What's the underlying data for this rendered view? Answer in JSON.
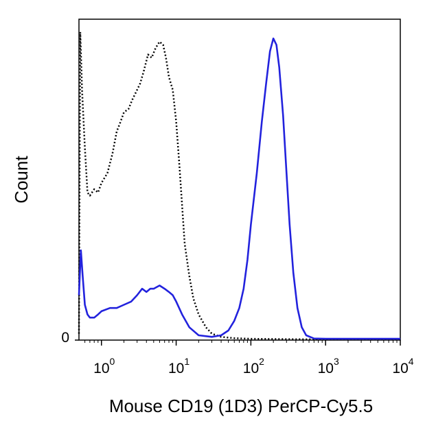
{
  "chart_data": {
    "type": "line",
    "title": "",
    "xlabel": "Mouse CD19 (1D3) PerCP-Cy5.5",
    "ylabel": "Count",
    "x_scale": "log",
    "xlim": [
      0.5,
      10000
    ],
    "ylim": [
      0,
      100
    ],
    "x_ticks": [
      {
        "value": 1,
        "base": "10",
        "exp": "0"
      },
      {
        "value": 10,
        "base": "10",
        "exp": "1"
      },
      {
        "value": 100,
        "base": "10",
        "exp": "2"
      },
      {
        "value": 1000,
        "base": "10",
        "exp": "3"
      },
      {
        "value": 10000,
        "base": "10",
        "exp": "4"
      }
    ],
    "y_ticks": [
      {
        "value": 0,
        "label": "0"
      }
    ],
    "grid": false,
    "series": [
      {
        "color": "#000000",
        "style": "dotted",
        "points": [
          [
            0.5,
            2
          ],
          [
            0.52,
            96
          ],
          [
            0.55,
            78
          ],
          [
            0.6,
            60
          ],
          [
            0.65,
            46
          ],
          [
            0.7,
            45
          ],
          [
            0.8,
            47
          ],
          [
            0.9,
            46
          ],
          [
            1.0,
            49
          ],
          [
            1.2,
            52
          ],
          [
            1.4,
            58
          ],
          [
            1.6,
            65
          ],
          [
            1.8,
            68
          ],
          [
            2.0,
            71
          ],
          [
            2.3,
            72
          ],
          [
            2.6,
            75
          ],
          [
            3.0,
            78
          ],
          [
            3.3,
            80
          ],
          [
            3.7,
            84
          ],
          [
            4.2,
            89
          ],
          [
            4.7,
            88
          ],
          [
            5.3,
            91
          ],
          [
            6.0,
            93
          ],
          [
            6.7,
            92
          ],
          [
            7.3,
            88
          ],
          [
            8.0,
            82
          ],
          [
            9.0,
            78
          ],
          [
            10.0,
            68
          ],
          [
            11.0,
            55
          ],
          [
            12.0,
            42
          ],
          [
            13.0,
            30
          ],
          [
            15.0,
            20
          ],
          [
            17.0,
            13
          ],
          [
            20.0,
            8
          ],
          [
            25.0,
            4
          ],
          [
            30.0,
            2
          ],
          [
            40.0,
            1
          ],
          [
            60.0,
            0.6
          ],
          [
            100.0,
            0.4
          ],
          [
            300.0,
            0.3
          ],
          [
            1000.0,
            0.2
          ],
          [
            10000.0,
            0.2
          ]
        ]
      },
      {
        "color": "#2222dd",
        "style": "solid",
        "points": [
          [
            0.5,
            14
          ],
          [
            0.53,
            28
          ],
          [
            0.56,
            20
          ],
          [
            0.6,
            11
          ],
          [
            0.65,
            8
          ],
          [
            0.7,
            7
          ],
          [
            0.8,
            7
          ],
          [
            0.9,
            8
          ],
          [
            1.0,
            9
          ],
          [
            1.3,
            10
          ],
          [
            1.6,
            10
          ],
          [
            2.0,
            11
          ],
          [
            2.5,
            12
          ],
          [
            3.0,
            14
          ],
          [
            3.5,
            16
          ],
          [
            4.0,
            15
          ],
          [
            4.5,
            16
          ],
          [
            5.0,
            16
          ],
          [
            6.0,
            17
          ],
          [
            7.0,
            16
          ],
          [
            8.0,
            15
          ],
          [
            9.0,
            14
          ],
          [
            10.0,
            12
          ],
          [
            12.0,
            8
          ],
          [
            15.0,
            4
          ],
          [
            20.0,
            1.5
          ],
          [
            30.0,
            1
          ],
          [
            40.0,
            1.5
          ],
          [
            50.0,
            3
          ],
          [
            60.0,
            6
          ],
          [
            70.0,
            10
          ],
          [
            80.0,
            16
          ],
          [
            90.0,
            25
          ],
          [
            100.0,
            36
          ],
          [
            120.0,
            52
          ],
          [
            140.0,
            68
          ],
          [
            160.0,
            80
          ],
          [
            180.0,
            90
          ],
          [
            200.0,
            94
          ],
          [
            220.0,
            92
          ],
          [
            240.0,
            85
          ],
          [
            270.0,
            70
          ],
          [
            300.0,
            52
          ],
          [
            330.0,
            36
          ],
          [
            370.0,
            21
          ],
          [
            420.0,
            10
          ],
          [
            480.0,
            4
          ],
          [
            550.0,
            1.5
          ],
          [
            700.0,
            0.5
          ],
          [
            1000.0,
            0.4
          ],
          [
            10000.0,
            0.4
          ]
        ]
      }
    ]
  }
}
